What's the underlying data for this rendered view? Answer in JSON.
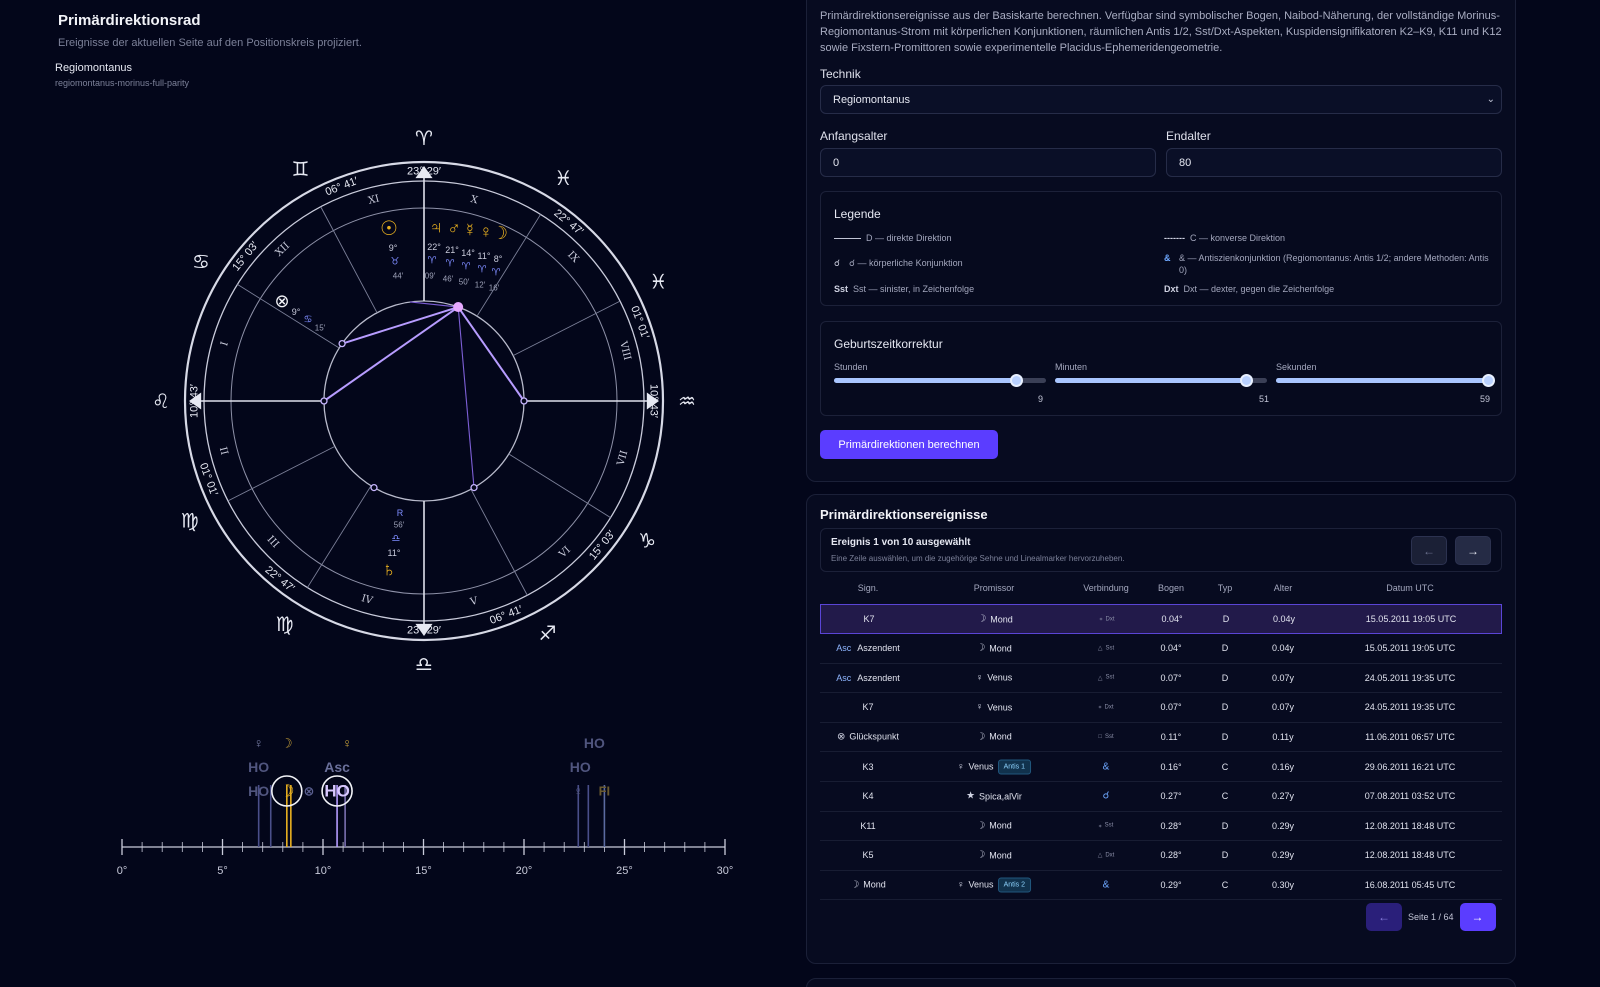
{
  "left": {
    "title": "Primärdirektionsrad",
    "subtitle": "Ereignisse der aktuellen Seite auf den Positionskreis projiziert.",
    "technique_name": "Regiomontanus",
    "technique_id": "regiomontanus-morinus-full-parity"
  },
  "wheel": {
    "sign_glyphs": [
      "♈",
      "♓",
      "♒",
      "♑",
      "♐",
      "♎",
      "♍",
      "♍",
      "♌",
      "♋",
      "♊"
    ],
    "house_numerals": [
      "X",
      "IX",
      "VIII",
      "VII",
      "VI",
      "V",
      "IV",
      "III",
      "II",
      "I",
      "XII",
      "XI"
    ],
    "cusp_labels": [
      "23° 29′",
      "22° 47′",
      "01° 01′",
      "10° 43′",
      "15° 03′",
      "06° 41′",
      "23° 29′",
      "22° 47′",
      "01° 01′",
      "10° 43′",
      "15° 03′",
      "06° 41′"
    ],
    "planets": [
      {
        "glyph": "☉",
        "deg": "9°",
        "sign": "♉",
        "min": "44′"
      },
      {
        "glyph": "♃",
        "deg": "22°",
        "sign": "♈",
        "min": "09′"
      },
      {
        "glyph": "♂",
        "deg": "21°",
        "sign": "♈",
        "min": "46′"
      },
      {
        "glyph": "☿",
        "deg": "14°",
        "sign": "♈",
        "min": "50′"
      },
      {
        "glyph": "♀",
        "deg": "11°",
        "sign": "♈",
        "min": "12′"
      },
      {
        "glyph": "☽",
        "deg": "8°",
        "sign": "♈",
        "min": "16′"
      },
      {
        "glyph": "⊗",
        "deg": "9°",
        "sign": "♋",
        "min": "15′"
      },
      {
        "glyph": "♄",
        "deg": "11°",
        "sign": "♎",
        "min": "56′",
        "retro": "R"
      }
    ]
  },
  "ruler": {
    "ticks": [
      "0°",
      "5°",
      "10°",
      "15°",
      "20°",
      "25°",
      "30°"
    ],
    "markers": [
      "♀",
      "☽",
      "HO",
      "HO",
      "☽",
      "⊗",
      "♀",
      "Asc",
      "HO",
      "HO",
      "HO",
      "♀",
      "FI"
    ]
  },
  "form": {
    "intro": "Primärdirektionsereignisse aus der Basiskarte berechnen. Verfügbar sind symbolischer Bogen, Naibod-Näherung, der vollständige Morinus-Regiomontanus-Strom mit körperlichen Konjunktionen, räumlichen Antis 1/2, Sst/Dxt-Aspekten, Kuspidensignifikatoren K2–K9, K11 und K12 sowie Fixstern-Promittoren sowie experimentelle Placidus-Ephemeridengeometrie.",
    "technique_label": "Technik",
    "technique_value": "Regiomontanus",
    "start_age_label": "Anfangsalter",
    "start_age_value": "0",
    "end_age_label": "Endalter",
    "end_age_value": "80",
    "legend": {
      "title": "Legende",
      "items": [
        {
          "sym": "———",
          "text": "D — direkte Direktion"
        },
        {
          "sym": "-------",
          "text": "C — konverse Direktion"
        },
        {
          "sym": "☌",
          "text": "☌ — körperliche Konjunktion"
        },
        {
          "sym": "&",
          "text": "& — Antiszienkonjunktion (Regiomontanus: Antis 1/2; andere Methoden: Antis 0)"
        },
        {
          "sym": "Sst",
          "text": "Sst — sinister, in Zeichenfolge"
        },
        {
          "sym": "Dxt",
          "text": "Dxt — dexter, gegen die Zeichenfolge"
        }
      ]
    },
    "correction": {
      "title": "Geburtszeitkorrektur",
      "sliders": [
        {
          "label": "Stunden",
          "value": "9",
          "fraction": 0.86
        },
        {
          "label": "Minuten",
          "value": "51",
          "fraction": 0.902
        },
        {
          "label": "Sekunden",
          "value": "59",
          "fraction": 1.0
        }
      ]
    },
    "submit_label": "Primärdirektionen berechnen"
  },
  "events": {
    "title": "Primärdirektionsereignisse",
    "selection_title": "Ereignis 1 von 10 ausgewählt",
    "selection_hint": "Eine Zeile auswählen, um die zugehörige Sehne und Linealmarker hervorzuheben.",
    "prev_icon": "←",
    "next_icon": "→",
    "columns": [
      "Sign.",
      "Promissor",
      "Verbindung",
      "Bogen",
      "Typ",
      "Alter",
      "Datum UTC"
    ],
    "rows": [
      {
        "sig_prefix": "",
        "sig": "K7",
        "prom_glyph": "☽",
        "prom": "Mond",
        "antis": "",
        "conn_glyph": "⁎",
        "conn": "Dxt",
        "arc": "0.04°",
        "type": "D",
        "age": "0.04y",
        "date": "15.05.2011 19:05 UTC"
      },
      {
        "sig_prefix": "Asc",
        "sig": "Aszendent",
        "prom_glyph": "☽",
        "prom": "Mond",
        "antis": "",
        "conn_glyph": "△",
        "conn": "Sst",
        "arc": "0.04°",
        "type": "D",
        "age": "0.04y",
        "date": "15.05.2011 19:05 UTC"
      },
      {
        "sig_prefix": "Asc",
        "sig": "Aszendent",
        "prom_glyph": "♀",
        "prom": "Venus",
        "antis": "",
        "conn_glyph": "△",
        "conn": "Sst",
        "arc": "0.07°",
        "type": "D",
        "age": "0.07y",
        "date": "24.05.2011 19:35 UTC"
      },
      {
        "sig_prefix": "",
        "sig": "K7",
        "prom_glyph": "♀",
        "prom": "Venus",
        "antis": "",
        "conn_glyph": "⁎",
        "conn": "Dxt",
        "arc": "0.07°",
        "type": "D",
        "age": "0.07y",
        "date": "24.05.2011 19:35 UTC"
      },
      {
        "sig_prefix": "⊗",
        "sig": "Glückspunkt",
        "prom_glyph": "☽",
        "prom": "Mond",
        "antis": "",
        "conn_glyph": "□",
        "conn": "Sst",
        "arc": "0.11°",
        "type": "D",
        "age": "0.11y",
        "date": "11.06.2011 06:57 UTC"
      },
      {
        "sig_prefix": "",
        "sig": "K3",
        "prom_glyph": "♀",
        "prom": "Venus",
        "antis": "Antis 1",
        "conn_glyph": "&",
        "conn": "",
        "arc": "0.16°",
        "type": "C",
        "age": "0.16y",
        "date": "29.06.2011 16:21 UTC"
      },
      {
        "sig_prefix": "",
        "sig": "K4",
        "prom_glyph": "★",
        "prom": "Spica,alVir",
        "antis": "",
        "conn_glyph": "☌",
        "conn": "",
        "arc": "0.27°",
        "type": "C",
        "age": "0.27y",
        "date": "07.08.2011 03:52 UTC"
      },
      {
        "sig_prefix": "",
        "sig": "K11",
        "prom_glyph": "☽",
        "prom": "Mond",
        "antis": "",
        "conn_glyph": "⁎",
        "conn": "Sst",
        "arc": "0.28°",
        "type": "D",
        "age": "0.29y",
        "date": "12.08.2011 18:48 UTC"
      },
      {
        "sig_prefix": "",
        "sig": "K5",
        "prom_glyph": "☽",
        "prom": "Mond",
        "antis": "",
        "conn_glyph": "△",
        "conn": "Dxt",
        "arc": "0.28°",
        "type": "D",
        "age": "0.29y",
        "date": "12.08.2011 18:48 UTC"
      },
      {
        "sig_prefix": "☽",
        "sig": "Mond",
        "prom_glyph": "♀",
        "prom": "Venus",
        "antis": "Antis 2",
        "conn_glyph": "&",
        "conn": "",
        "arc": "0.29°",
        "type": "C",
        "age": "0.30y",
        "date": "16.08.2011 05:45 UTC"
      }
    ],
    "page_text": "Seite 1 / 64"
  },
  "colors": {
    "accent": "#5b3dff",
    "selected_row": "#221a4a",
    "chord": "#9b7bff",
    "gold": "#e8b020"
  }
}
